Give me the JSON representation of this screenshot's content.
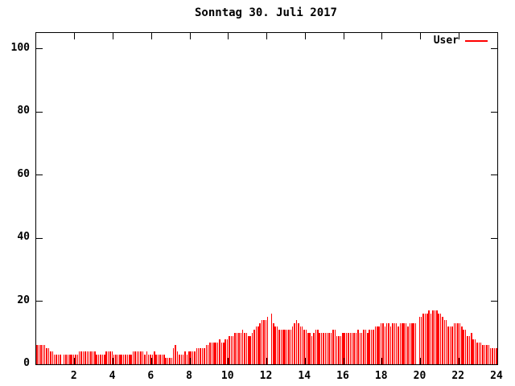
{
  "chart_data": {
    "type": "bar",
    "title": "Sonntag 30. Juli 2017",
    "xlabel": "",
    "ylabel": "",
    "xlim": [
      0,
      24
    ],
    "ylim": [
      0,
      105
    ],
    "xticks": [
      2,
      4,
      6,
      8,
      10,
      12,
      14,
      16,
      18,
      20,
      22,
      24
    ],
    "yticks": [
      0,
      20,
      40,
      60,
      80,
      100
    ],
    "grid": false,
    "legend_position": "top-right",
    "background_color": "#ffffff",
    "axis_color": "#000000",
    "x_start_hour": 0.05,
    "x_step_hours": 0.1,
    "series": [
      {
        "name": "User",
        "color": "#ff0000",
        "style": "impulses",
        "values": [
          6,
          6,
          6,
          6,
          6,
          5,
          5,
          4,
          4,
          3,
          3,
          3,
          3,
          0,
          3,
          3,
          3,
          3,
          3,
          3,
          3,
          3,
          4,
          4,
          4,
          4,
          4,
          4,
          4,
          4,
          4,
          3,
          3,
          3,
          3,
          3,
          4,
          4,
          4,
          4,
          3,
          3,
          3,
          3,
          3,
          3,
          3,
          3,
          3,
          3,
          4,
          4,
          4,
          4,
          4,
          4,
          3,
          4,
          3,
          3,
          3,
          4,
          3,
          3,
          3,
          3,
          3,
          2,
          2,
          2,
          2,
          5,
          6,
          4,
          3,
          3,
          3,
          4,
          3,
          4,
          4,
          4,
          4,
          5,
          5,
          5,
          5,
          5,
          6,
          6,
          7,
          7,
          7,
          7,
          7,
          8,
          7,
          7,
          8,
          8,
          9,
          9,
          9,
          10,
          10,
          10,
          10,
          11,
          10,
          10,
          9,
          9,
          10,
          11,
          12,
          12,
          13,
          14,
          14,
          14,
          15,
          0,
          16,
          13,
          12,
          12,
          11,
          11,
          11,
          11,
          11,
          11,
          11,
          12,
          13,
          14,
          13,
          12,
          12,
          11,
          11,
          10,
          10,
          9,
          10,
          11,
          11,
          10,
          10,
          10,
          10,
          10,
          10,
          10,
          11,
          11,
          9,
          9,
          9,
          10,
          10,
          10,
          10,
          10,
          10,
          10,
          10,
          11,
          10,
          10,
          11,
          11,
          10,
          11,
          11,
          11,
          12,
          12,
          12,
          13,
          13,
          12,
          13,
          13,
          12,
          13,
          13,
          13,
          12,
          13,
          13,
          13,
          13,
          12,
          13,
          13,
          13,
          13,
          0,
          15,
          15,
          16,
          16,
          16,
          17,
          16,
          17,
          17,
          17,
          16,
          16,
          15,
          14,
          14,
          12,
          12,
          12,
          13,
          13,
          13,
          13,
          12,
          11,
          11,
          9,
          9,
          10,
          8,
          8,
          7,
          7,
          7,
          6,
          6,
          6,
          6,
          5,
          5,
          5,
          5
        ]
      }
    ]
  }
}
